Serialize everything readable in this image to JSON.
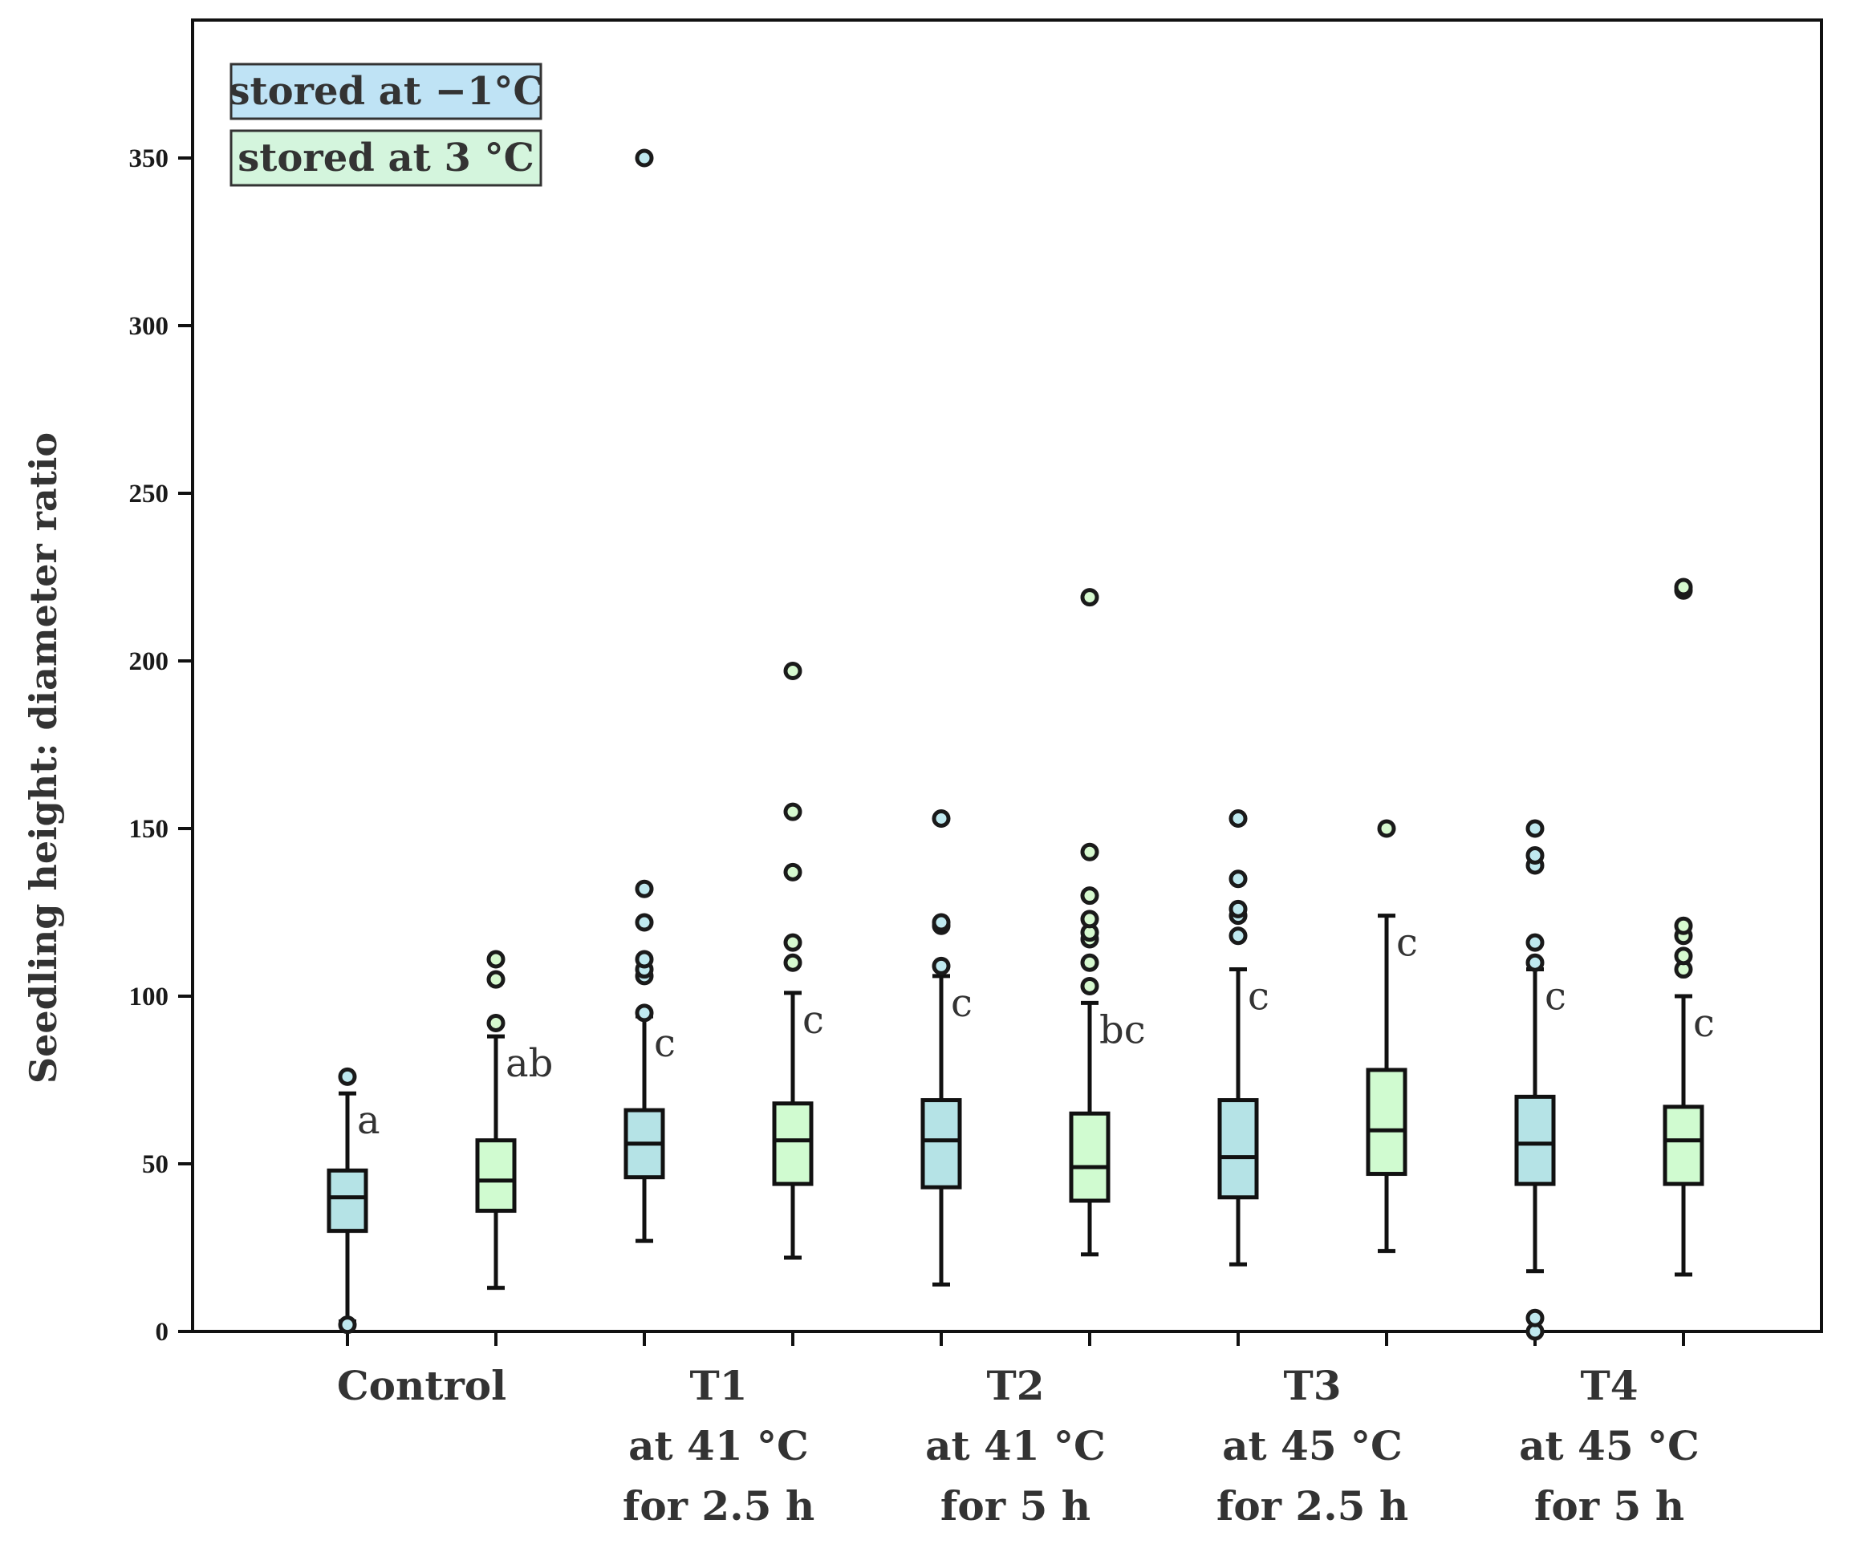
{
  "chart_data": {
    "type": "box",
    "ylabel": "Seedling height: diameter ratio",
    "xlabel": "",
    "ylim": [
      0,
      390
    ],
    "y_ticks": [
      0,
      50,
      100,
      150,
      200,
      250,
      300,
      350
    ],
    "groups": [
      {
        "label_lines": [
          "Control"
        ]
      },
      {
        "label_lines": [
          "T1",
          "at 41 °C",
          "for 2.5 h"
        ]
      },
      {
        "label_lines": [
          "T2",
          "at 41 °C",
          "for 5 h"
        ]
      },
      {
        "label_lines": [
          "T3",
          "at 45 °C",
          "for 2.5 h"
        ]
      },
      {
        "label_lines": [
          "T4",
          "at 45 °C",
          "for 5 h"
        ]
      }
    ],
    "legend": [
      {
        "name": "stored at −1°C",
        "color": "#bfe3f5"
      },
      {
        "name": "stored at 3 °C",
        "color": "#d4f5dd"
      }
    ],
    "series_colors": {
      "cold": "#b5e3e6",
      "warm": "#d0fbd0"
    },
    "outlier_fill": {
      "cold": "#bfe9ef",
      "warm": "#d6f9cf"
    },
    "boxes": [
      {
        "group": 0,
        "series": "cold",
        "whisker_low": 3,
        "q1": 30,
        "median": 40,
        "q3": 48,
        "whisker_high": 71,
        "outliers": [
          76,
          2
        ],
        "sig": "a"
      },
      {
        "group": 0,
        "series": "warm",
        "whisker_low": 13,
        "q1": 36,
        "median": 45,
        "q3": 57,
        "whisker_high": 88,
        "outliers": [
          92,
          105,
          111
        ],
        "sig": "ab"
      },
      {
        "group": 1,
        "series": "cold",
        "whisker_low": 27,
        "q1": 46,
        "median": 56,
        "q3": 66,
        "whisker_high": 94,
        "outliers": [
          95,
          106,
          108,
          111,
          122,
          132,
          350
        ],
        "sig": "c"
      },
      {
        "group": 1,
        "series": "warm",
        "whisker_low": 22,
        "q1": 44,
        "median": 57,
        "q3": 68,
        "whisker_high": 101,
        "outliers": [
          110,
          116,
          137,
          155,
          197
        ],
        "sig": "c"
      },
      {
        "group": 2,
        "series": "cold",
        "whisker_low": 14,
        "q1": 43,
        "median": 57,
        "q3": 69,
        "whisker_high": 106,
        "outliers": [
          109,
          121,
          122,
          153
        ],
        "sig": "c"
      },
      {
        "group": 2,
        "series": "warm",
        "whisker_low": 23,
        "q1": 39,
        "median": 49,
        "q3": 65,
        "whisker_high": 98,
        "outliers": [
          103,
          110,
          117,
          119,
          123,
          130,
          143,
          219
        ],
        "sig": "bc"
      },
      {
        "group": 3,
        "series": "cold",
        "whisker_low": 20,
        "q1": 40,
        "median": 52,
        "q3": 69,
        "whisker_high": 108,
        "outliers": [
          118,
          124,
          126,
          135,
          153
        ],
        "sig": "c"
      },
      {
        "group": 3,
        "series": "warm",
        "whisker_low": 24,
        "q1": 47,
        "median": 60,
        "q3": 78,
        "whisker_high": 124,
        "outliers": [
          150
        ],
        "sig": "c"
      },
      {
        "group": 4,
        "series": "cold",
        "whisker_low": 18,
        "q1": 44,
        "median": 56,
        "q3": 70,
        "whisker_high": 108,
        "outliers": [
          0,
          4,
          110,
          116,
          139,
          142,
          150
        ],
        "sig": "c"
      },
      {
        "group": 4,
        "series": "warm",
        "whisker_low": 17,
        "q1": 44,
        "median": 57,
        "q3": 67,
        "whisker_high": 100,
        "outliers": [
          108,
          112,
          118,
          121,
          221,
          222
        ],
        "sig": "c"
      }
    ]
  }
}
